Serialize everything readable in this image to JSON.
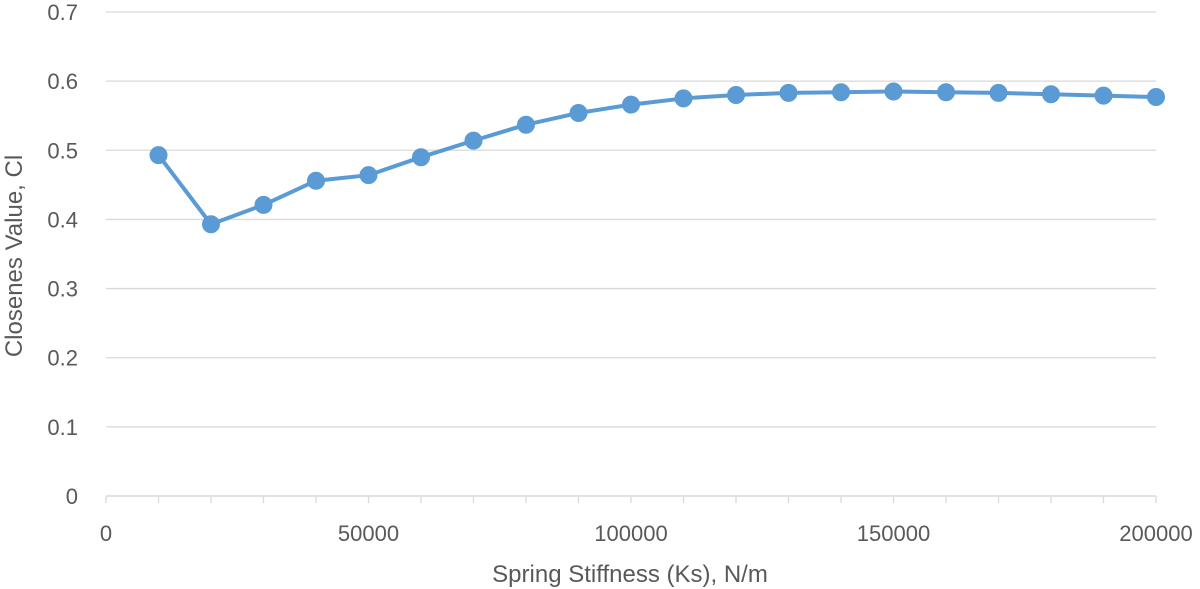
{
  "colors": {
    "series": "#5B9BD5",
    "gridline": "#D9D9D9",
    "axis_text": "#595959",
    "background": "#FFFFFF"
  },
  "chart_data": {
    "type": "line",
    "title": "",
    "xlabel": "Spring Stiffness (Ks), N/m",
    "ylabel": "Closenes Value, Cl",
    "xlim": [
      0,
      200000
    ],
    "ylim": [
      0,
      0.7
    ],
    "x_ticks": [
      0,
      50000,
      100000,
      150000,
      200000
    ],
    "x_tick_labels": [
      "0",
      "50000",
      "100000",
      "150000",
      "200000"
    ],
    "x_minor_tick_step": 10000,
    "y_ticks": [
      0,
      0.1,
      0.2,
      0.3,
      0.4,
      0.5,
      0.6,
      0.7
    ],
    "y_tick_labels": [
      "0",
      "0.1",
      "0.2",
      "0.3",
      "0.4",
      "0.5",
      "0.6",
      "0.7"
    ],
    "grid": "horizontal",
    "legend": "none",
    "markers": "circle",
    "series": [
      {
        "x": [
          10000,
          20000,
          30000,
          40000,
          50000,
          60000,
          70000,
          80000,
          90000,
          100000,
          110000,
          120000,
          130000,
          140000,
          150000,
          160000,
          170000,
          180000,
          190000,
          200000
        ],
        "values": [
          0.493,
          0.393,
          0.421,
          0.456,
          0.464,
          0.49,
          0.514,
          0.537,
          0.554,
          0.566,
          0.575,
          0.58,
          0.583,
          0.584,
          0.585,
          0.584,
          0.583,
          0.581,
          0.579,
          0.577
        ]
      }
    ]
  }
}
